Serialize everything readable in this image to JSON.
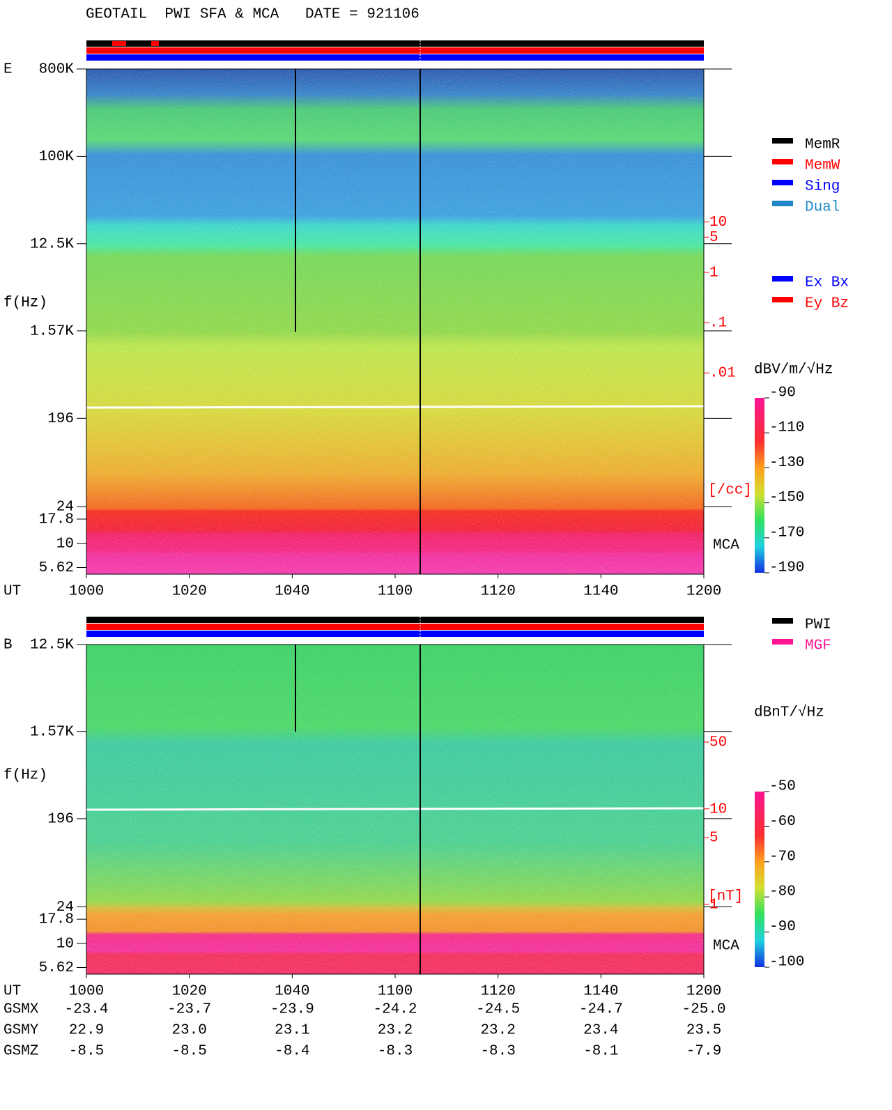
{
  "chart_data": [
    {
      "type": "spectrogram",
      "title": "GEOTAIL  PWI SFA & MCA   DATE = 921106",
      "panel_label": "E",
      "ylabel": "f(Hz)",
      "xlabel": "UT",
      "categories": [
        "1000",
        "1020",
        "1040",
        "1100",
        "1120",
        "1140",
        "1200"
      ],
      "log_y": true,
      "ylim": [
        4.8,
        800000
      ],
      "yticks": [
        {
          "value": 800000,
          "label": "800K"
        },
        {
          "value": 100000,
          "label": "100K"
        },
        {
          "value": 12500,
          "label": "12.5K"
        },
        {
          "value": 1570,
          "label": "1.57K"
        },
        196,
        24,
        17.8,
        10,
        5.62
      ],
      "y2lim": [
        1e-06,
        11000
      ],
      "y2color": "#ff0000",
      "y2ticks": [
        10,
        5,
        1,
        {
          "value": 0.1,
          "label": ".1"
        },
        {
          "value": 0.01,
          "label": ".01"
        }
      ],
      "y2label": "[/cc]",
      "annotation": "MCA",
      "zlabel": "dBV/m/√Hz",
      "zlim": [
        -190,
        -90
      ],
      "zticks": [
        -90,
        -110,
        -130,
        -150,
        -170,
        -190
      ],
      "status_legend": [
        {
          "name": "MemR",
          "color": "#000000"
        },
        {
          "name": "MemW",
          "color": "#ff0000"
        },
        {
          "name": "Sing",
          "color": "#0000ff"
        },
        {
          "name": "Dual",
          "color": "#1e88c8"
        }
      ],
      "sensor_legend": [
        {
          "name": "Ex Bx",
          "color": "#0000ff"
        },
        {
          "name": "Ey Bz",
          "color": "#ff0000"
        }
      ]
    },
    {
      "type": "spectrogram",
      "panel_label": "B",
      "ylabel": "f(Hz)",
      "xlabel": "UT",
      "categories": [
        "1000",
        "1020",
        "1040",
        "1100",
        "1120",
        "1140",
        "1200"
      ],
      "log_y": true,
      "ylim": [
        4.8,
        12500
      ],
      "yticks": [
        {
          "value": 12500,
          "label": "12.5K"
        },
        {
          "value": 1570,
          "label": "1.57K"
        },
        196,
        24,
        17.8,
        10,
        5.62
      ],
      "y2lim": [
        0.186,
        525
      ],
      "y2color": "#ff0000",
      "y2ticks": [
        50,
        10,
        5,
        1
      ],
      "y2label": "[nT]",
      "annotation": "MCA",
      "zlabel": "dBnT/√Hz",
      "zlim": [
        -100,
        -50
      ],
      "zticks": [
        -50,
        -60,
        -70,
        -80,
        -90,
        -100
      ],
      "status_legend": [
        {
          "name": "PWI",
          "color": "#000000"
        },
        {
          "name": "MGF",
          "color": "#ff1493"
        }
      ]
    }
  ],
  "orbit_table": {
    "rows": [
      {
        "label": "GSMX",
        "values": [
          "-23.4",
          "-23.7",
          "-23.9",
          "-24.2",
          "-24.5",
          "-24.7",
          "-25.0"
        ]
      },
      {
        "label": "GSMY",
        "values": [
          "22.9",
          "23.0",
          "23.1",
          "23.2",
          "23.2",
          "23.4",
          "23.5"
        ]
      },
      {
        "label": "GSMZ",
        "values": [
          "-8.5",
          "-8.5",
          "-8.4",
          "-8.3",
          "-8.3",
          "-8.1",
          "-7.9"
        ]
      }
    ]
  }
}
